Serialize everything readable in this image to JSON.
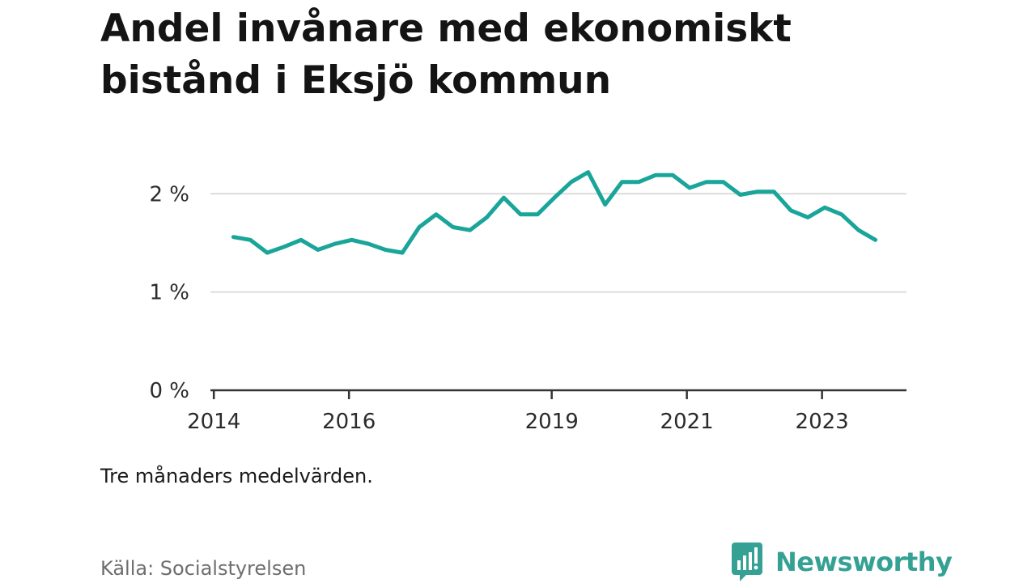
{
  "header": {
    "title": "Andel invånare med ekonomiskt bistånd i Eksjö kommun"
  },
  "chart_data": {
    "type": "line",
    "title": "Andel invånare med ekonomiskt bistånd i Eksjö kommun",
    "xlabel": "",
    "ylabel": "",
    "xlim": [
      2013.95,
      2024.25
    ],
    "ylim": [
      0,
      2.2
    ],
    "y_ticks": [
      {
        "value": 0,
        "label": "0 %"
      },
      {
        "value": 1,
        "label": "1 %"
      },
      {
        "value": 2,
        "label": "2 %"
      }
    ],
    "x_ticks": [
      {
        "value": 2014,
        "label": "2014"
      },
      {
        "value": 2016,
        "label": "2016"
      },
      {
        "value": 2019,
        "label": "2019"
      },
      {
        "value": 2021,
        "label": "2021"
      },
      {
        "value": 2023,
        "label": "2023"
      }
    ],
    "grid": true,
    "series": [
      {
        "name": "Andel invånare med ekonomiskt bistånd",
        "color": "#1aa59a",
        "x": [
          2014.29,
          2014.54,
          2014.79,
          2015.04,
          2015.29,
          2015.54,
          2015.79,
          2016.04,
          2016.29,
          2016.54,
          2016.79,
          2017.04,
          2017.29,
          2017.54,
          2017.79,
          2018.04,
          2018.29,
          2018.54,
          2018.79,
          2019.04,
          2019.29,
          2019.54,
          2019.79,
          2020.04,
          2020.29,
          2020.54,
          2020.79,
          2021.04,
          2021.29,
          2021.54,
          2021.79,
          2022.04,
          2022.29,
          2022.54,
          2022.79,
          2023.04,
          2023.29,
          2023.54,
          2023.79
        ],
        "values": [
          1.56,
          1.53,
          1.4,
          1.46,
          1.53,
          1.43,
          1.49,
          1.53,
          1.49,
          1.43,
          1.4,
          1.66,
          1.79,
          1.66,
          1.63,
          1.76,
          1.96,
          1.79,
          1.79,
          1.96,
          2.12,
          2.22,
          1.89,
          2.12,
          2.12,
          2.19,
          2.19,
          2.06,
          2.12,
          2.12,
          1.99,
          2.02,
          2.02,
          1.83,
          1.76,
          1.86,
          1.79,
          1.63,
          1.53
        ]
      }
    ]
  },
  "footer": {
    "note": "Tre månaders medelvärden.",
    "source": "Källa: Socialstyrelsen",
    "brand": "Newsworthy",
    "brand_color": "#35a195"
  }
}
